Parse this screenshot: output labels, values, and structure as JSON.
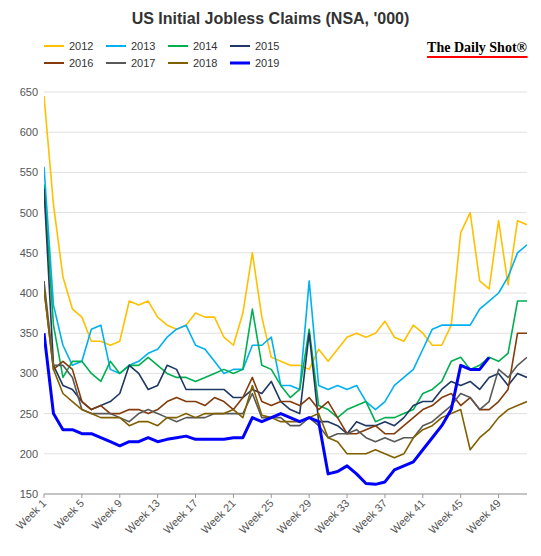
{
  "chart_data": {
    "type": "line",
    "title": "US Initial Jobless Claims (NSA, '000)",
    "annotations": [
      "The Daily Shot®"
    ],
    "x": [
      1,
      2,
      3,
      4,
      5,
      6,
      7,
      8,
      9,
      10,
      11,
      12,
      13,
      14,
      15,
      16,
      17,
      18,
      19,
      20,
      21,
      22,
      23,
      24,
      25,
      26,
      27,
      28,
      29,
      30,
      31,
      32,
      33,
      34,
      35,
      36,
      37,
      38,
      39,
      40,
      41,
      42,
      43,
      44,
      45,
      46,
      47,
      48,
      49,
      50,
      51,
      52
    ],
    "xlim": [
      1,
      52
    ],
    "xticks": [
      {
        "value": 1,
        "label": "Week 1"
      },
      {
        "value": 5,
        "label": "Week 5"
      },
      {
        "value": 9,
        "label": "Week 9"
      },
      {
        "value": 13,
        "label": "Week 13"
      },
      {
        "value": 17,
        "label": "Week 17"
      },
      {
        "value": 21,
        "label": "Week 21"
      },
      {
        "value": 25,
        "label": "Week 25"
      },
      {
        "value": 29,
        "label": "Week 29"
      },
      {
        "value": 33,
        "label": "Week 33"
      },
      {
        "value": 37,
        "label": "Week 37"
      },
      {
        "value": 41,
        "label": "Week 41"
      },
      {
        "value": 45,
        "label": "Week 45"
      },
      {
        "value": 49,
        "label": "Week 49"
      }
    ],
    "ylim": [
      150,
      650
    ],
    "yticks": [
      150,
      200,
      250,
      300,
      350,
      400,
      450,
      500,
      550,
      600,
      650
    ],
    "grid": true,
    "legend": "top",
    "series": [
      {
        "name": "2012",
        "color": "#FFC000",
        "values": [
          645,
          510,
          420,
          380,
          370,
          340,
          340,
          335,
          340,
          390,
          385,
          390,
          370,
          360,
          355,
          360,
          375,
          370,
          370,
          345,
          335,
          375,
          450,
          370,
          320,
          315,
          310,
          310,
          305,
          330,
          315,
          330,
          345,
          350,
          345,
          350,
          365,
          345,
          340,
          360,
          350,
          335,
          335,
          360,
          475,
          500,
          415,
          405,
          490,
          410,
          490,
          485
        ]
      },
      {
        "name": "2013",
        "color": "#00B0F0",
        "values": [
          557,
          385,
          335,
          310,
          315,
          355,
          360,
          305,
          300,
          310,
          315,
          325,
          330,
          345,
          355,
          360,
          335,
          330,
          315,
          300,
          305,
          305,
          335,
          335,
          345,
          285,
          285,
          280,
          415,
          285,
          280,
          285,
          280,
          285,
          265,
          255,
          265,
          285,
          295,
          305,
          330,
          355,
          360,
          360,
          360,
          360,
          380,
          390,
          400,
          420,
          450,
          460
        ]
      },
      {
        "name": "2014",
        "color": "#00B050",
        "values": [
          535,
          360,
          295,
          315,
          315,
          300,
          290,
          315,
          300,
          310,
          310,
          320,
          310,
          300,
          295,
          295,
          290,
          295,
          300,
          305,
          300,
          305,
          380,
          310,
          305,
          285,
          270,
          280,
          355,
          260,
          255,
          245,
          255,
          260,
          265,
          240,
          245,
          245,
          250,
          255,
          275,
          280,
          290,
          315,
          320,
          305,
          310,
          320,
          315,
          325,
          390,
          390
        ]
      },
      {
        "name": "2015",
        "color": "#1F3864",
        "values": [
          530,
          310,
          285,
          280,
          265,
          255,
          260,
          265,
          275,
          310,
          300,
          280,
          285,
          310,
          305,
          280,
          280,
          280,
          280,
          280,
          270,
          270,
          280,
          275,
          290,
          265,
          255,
          250,
          350,
          240,
          240,
          235,
          225,
          240,
          235,
          235,
          240,
          235,
          245,
          260,
          265,
          265,
          280,
          290,
          285,
          290,
          280,
          295,
          300,
          285,
          300,
          295
        ]
      },
      {
        "name": "2016",
        "color": "#843C0C",
        "values": [
          405,
          305,
          315,
          305,
          265,
          255,
          260,
          250,
          250,
          255,
          255,
          250,
          255,
          265,
          270,
          265,
          265,
          260,
          270,
          265,
          255,
          270,
          295,
          265,
          260,
          265,
          265,
          260,
          270,
          255,
          265,
          245,
          225,
          225,
          230,
          235,
          225,
          225,
          235,
          245,
          255,
          260,
          270,
          275,
          260,
          270,
          255,
          255,
          265,
          280,
          350,
          350
        ]
      },
      {
        "name": "2017",
        "color": "#595959",
        "values": [
          415,
          310,
          310,
          295,
          255,
          250,
          250,
          250,
          245,
          240,
          250,
          255,
          250,
          245,
          240,
          245,
          245,
          245,
          250,
          250,
          250,
          250,
          275,
          245,
          245,
          245,
          235,
          235,
          245,
          235,
          220,
          225,
          225,
          230,
          220,
          215,
          220,
          215,
          220,
          220,
          235,
          240,
          250,
          260,
          275,
          270,
          255,
          265,
          305,
          295,
          310,
          320
        ]
      },
      {
        "name": "2018",
        "color": "#806000",
        "values": [
          405,
          305,
          275,
          265,
          255,
          250,
          245,
          245,
          245,
          235,
          240,
          240,
          235,
          245,
          245,
          250,
          245,
          250,
          250,
          250,
          255,
          245,
          285,
          248,
          245,
          240,
          240,
          240,
          245,
          250,
          220,
          215,
          200,
          200,
          200,
          205,
          200,
          195,
          200,
          220,
          230,
          235,
          245,
          250,
          255,
          205,
          220,
          230,
          245,
          255,
          260,
          265
        ]
      },
      {
        "name": "2019",
        "color": "#0000FF",
        "values": [
          350,
          250,
          230,
          230,
          225,
          225,
          220,
          215,
          210,
          215,
          215,
          220,
          215,
          218,
          220,
          222,
          218,
          218,
          218,
          218,
          220,
          220,
          245,
          240,
          245,
          250,
          245,
          240,
          245,
          240,
          175,
          178,
          185,
          175,
          163,
          162,
          165,
          180,
          185,
          190,
          205,
          220,
          235,
          255,
          310,
          305,
          305,
          320,
          null,
          null,
          null,
          null
        ]
      }
    ]
  }
}
